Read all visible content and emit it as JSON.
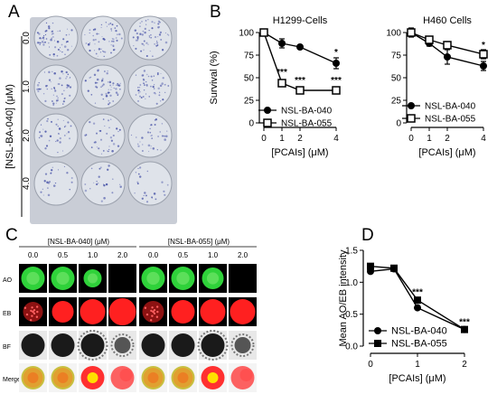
{
  "panel_letters": {
    "a": "A",
    "b": "B",
    "c": "C",
    "d": "D"
  },
  "panel_a": {
    "y_title": "[NSL-BA-040] (μM)",
    "row_labels": [
      "0.0",
      "1.0",
      "2.0",
      "4.0"
    ],
    "plate_color": "#dfe3ea",
    "stain_color": "#4a55a8"
  },
  "panel_c": {
    "group_headers": [
      "[NSL-BA-040] (μM)",
      "[NSL-BA-055] (μM)"
    ],
    "col_labels": [
      "0.0",
      "0.5",
      "1.0",
      "2.0",
      "0.0",
      "0.5",
      "1.0",
      "2.0"
    ],
    "row_labels": [
      "AO",
      "EB",
      "BF",
      "Merge"
    ],
    "colors": {
      "ao": "#2fd23a",
      "eb": "#ff2020",
      "merge_green": "#c8c040",
      "merge_red": "#ff3030",
      "merge_yellow": "#ffe000"
    }
  },
  "chart_data": [
    {
      "type": "line",
      "title": "H1299-Cells",
      "xlabel": "[PCAIs] (μM)",
      "ylabel": "Survival (%)",
      "x": [
        0,
        1,
        2,
        4
      ],
      "x_tick_labels": [
        "0",
        "1",
        "2",
        "4"
      ],
      "y_ticks": [
        0,
        25,
        50,
        75,
        100
      ],
      "ylim": [
        0,
        100
      ],
      "series": [
        {
          "name": "NSL-BA-040",
          "marker": "filled-circle",
          "values": [
            100,
            88,
            84,
            66
          ],
          "errors": [
            3,
            5,
            2,
            6
          ]
        },
        {
          "name": "NSL-BA-055",
          "marker": "open-square",
          "values": [
            100,
            44,
            36,
            36
          ],
          "errors": [
            3,
            3,
            2,
            2
          ]
        }
      ],
      "annotations": [
        {
          "x": 4,
          "y": 75,
          "text": "*"
        },
        {
          "x": 1,
          "y": 53,
          "text": "***"
        },
        {
          "x": 2,
          "y": 44,
          "text": "***"
        },
        {
          "x": 4,
          "y": 44,
          "text": "***"
        }
      ],
      "legend_placement": "bottom-left"
    },
    {
      "type": "line",
      "title": "H460 Cells",
      "xlabel": "[PCAIs] (μM)",
      "ylabel": "",
      "x": [
        0,
        1,
        2,
        4
      ],
      "x_tick_labels": [
        "0",
        "1",
        "2",
        "4"
      ],
      "y_ticks": [
        0,
        25,
        50,
        75,
        100
      ],
      "ylim": [
        0,
        100
      ],
      "series": [
        {
          "name": "NSL-BA-040",
          "marker": "filled-circle",
          "values": [
            100,
            88,
            73,
            63
          ],
          "errors": [
            5,
            3,
            8,
            5
          ]
        },
        {
          "name": "NSL-BA-055",
          "marker": "open-square",
          "values": [
            100,
            92,
            86,
            76
          ],
          "errors": [
            3,
            3,
            4,
            5
          ]
        }
      ],
      "annotations": [
        {
          "x": 4,
          "y": 83,
          "text": "*"
        }
      ],
      "legend_placement": "bottom-left"
    },
    {
      "type": "line",
      "title": "",
      "xlabel": "[PCAIs] (μM)",
      "ylabel": "Mean AO/EB intensity",
      "x": [
        0,
        0.5,
        1,
        2
      ],
      "x_tick_labels": [
        "0",
        "1",
        "2"
      ],
      "x_ticks": [
        0,
        1,
        2
      ],
      "y_ticks": [
        0.0,
        0.5,
        1.0,
        1.5
      ],
      "y_tick_labels": [
        "0.0",
        "0.5",
        "1.0",
        "1.5"
      ],
      "ylim": [
        0,
        1.5
      ],
      "series": [
        {
          "name": "NSL-BA-040",
          "marker": "filled-circle",
          "values": [
            1.17,
            1.21,
            0.6,
            0.26
          ]
        },
        {
          "name": "NSL-BA-055",
          "marker": "filled-square",
          "values": [
            1.25,
            1.22,
            0.72,
            0.26
          ]
        }
      ],
      "annotations": [
        {
          "x": 1,
          "y": 0.8,
          "text": "***"
        },
        {
          "x": 2,
          "y": 0.33,
          "text": "***"
        }
      ],
      "legend_placement": "bottom-left"
    }
  ]
}
